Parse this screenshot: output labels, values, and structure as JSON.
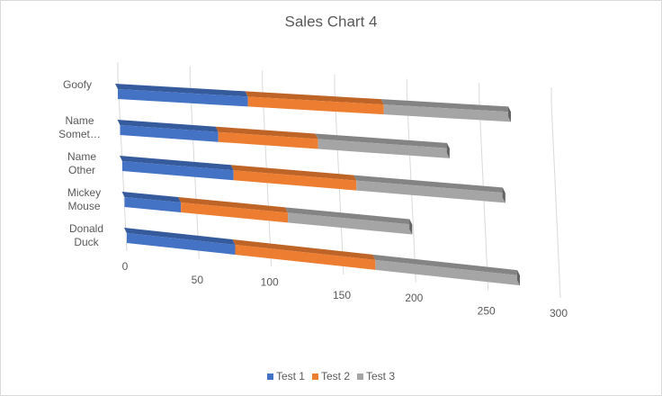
{
  "chart_data": {
    "type": "bar3d",
    "title": "Sales Chart 4",
    "categories": [
      "Donald Duck",
      "Mickey Mouse",
      "Name Other",
      "Name Somet…",
      "Goofy"
    ],
    "series": [
      {
        "name": "Test 1",
        "color": "#4472c4",
        "values": [
          75,
          39,
          77,
          68,
          90
        ]
      },
      {
        "name": "Test 2",
        "color": "#ed7d31",
        "values": [
          97,
          74,
          85,
          69,
          94
        ]
      },
      {
        "name": "Test 3",
        "color": "#a5a5a5",
        "values": [
          100,
          86,
          103,
          91,
          88
        ]
      }
    ],
    "xlim": [
      0,
      300
    ],
    "xticks": [
      0,
      50,
      100,
      150,
      200,
      250,
      300
    ],
    "grid": true
  }
}
